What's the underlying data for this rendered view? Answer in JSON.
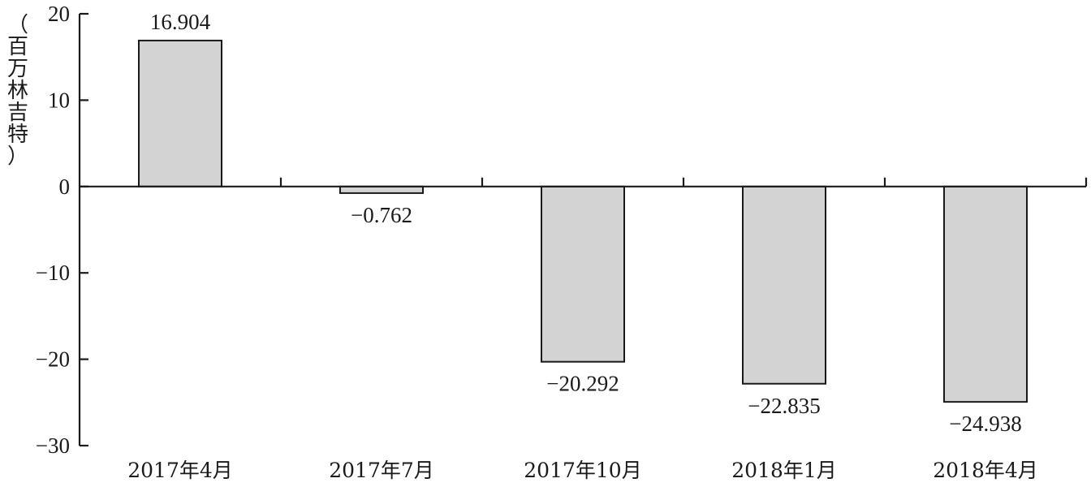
{
  "chart_data": {
    "type": "bar",
    "title": "",
    "xlabel": "",
    "ylabel": "（百万林吉特）",
    "categories": [
      "2017年4月",
      "2017年7月",
      "2017年10月",
      "2018年1月",
      "2018年4月"
    ],
    "values": [
      16.904,
      -0.762,
      -20.292,
      -22.835,
      -24.938
    ],
    "value_labels": [
      "16.904",
      "−0.762",
      "−20.292",
      "−22.835",
      "−24.938"
    ],
    "ylim": [
      -30,
      20
    ],
    "yticks": [
      20,
      10,
      0,
      -10,
      -20,
      -30
    ],
    "ytick_labels": [
      "20",
      "10",
      "0",
      "−10",
      "−20",
      "−30"
    ],
    "bar_color": "#d3d3d3",
    "bar_edge_color": "#1a1a1a",
    "grid": false,
    "legend": "none"
  }
}
